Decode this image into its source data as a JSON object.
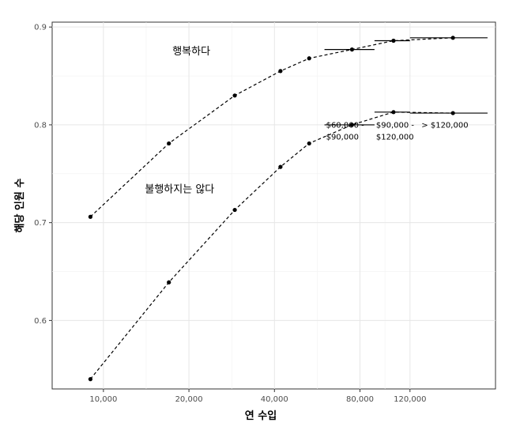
{
  "chart_data": {
    "type": "line",
    "xlabel": "연 수입",
    "ylabel": "해당 인원 수",
    "ylim": [
      0.53,
      0.905
    ],
    "yticks": [
      0.6,
      0.7,
      0.8,
      0.9
    ],
    "xticks": [
      {
        "value": 10000,
        "label": "10,000"
      },
      {
        "value": 20000,
        "label": "20,000"
      },
      {
        "value": 40000,
        "label": "40,000"
      },
      {
        "value": 80000,
        "label": "80,000"
      },
      {
        "value": 120000,
        "label": "120,000"
      }
    ],
    "xlim": [
      6600,
      240000
    ],
    "scale": "log",
    "grid": true,
    "series": [
      {
        "name": "행복하다",
        "style": "dashed",
        "points": [
          {
            "x": 9000,
            "y": 0.706
          },
          {
            "x": 17000,
            "y": 0.781
          },
          {
            "x": 29000,
            "y": 0.83
          },
          {
            "x": 42000,
            "y": 0.855
          },
          {
            "x": 53000,
            "y": 0.868
          },
          {
            "x": 75000,
            "y": 0.877
          },
          {
            "x": 105000,
            "y": 0.886
          },
          {
            "x": 170000,
            "y": 0.889
          }
        ],
        "ranges": [
          {
            "x0": 60000,
            "x1": 90000,
            "y": 0.877
          },
          {
            "x0": 90000,
            "x1": 120000,
            "y": 0.886
          },
          {
            "x0": 120000,
            "x1": 225000,
            "y": 0.889
          }
        ]
      },
      {
        "name": "불행하지는 않다",
        "style": "dashed",
        "points": [
          {
            "x": 9000,
            "y": 0.54
          },
          {
            "x": 17000,
            "y": 0.639
          },
          {
            "x": 29000,
            "y": 0.713
          },
          {
            "x": 42000,
            "y": 0.757
          },
          {
            "x": 53000,
            "y": 0.781
          },
          {
            "x": 75000,
            "y": 0.8
          },
          {
            "x": 105000,
            "y": 0.813
          },
          {
            "x": 170000,
            "y": 0.812
          }
        ],
        "ranges": [
          {
            "x0": 60000,
            "x1": 90000,
            "y": 0.8
          },
          {
            "x0": 90000,
            "x1": 120000,
            "y": 0.813
          },
          {
            "x0": 120000,
            "x1": 225000,
            "y": 0.812
          }
        ]
      }
    ],
    "annotations": [
      {
        "text": "$60,000 -",
        "x": 60000,
        "y": 0.797
      },
      {
        "text": "$90,000",
        "x": 60000,
        "y": 0.785
      },
      {
        "text": "$90,000 -",
        "x": 90000,
        "y": 0.797
      },
      {
        "text": "$120,000",
        "x": 90000,
        "y": 0.785
      },
      {
        "text": "> $120,000",
        "x": 130000,
        "y": 0.797
      }
    ]
  }
}
